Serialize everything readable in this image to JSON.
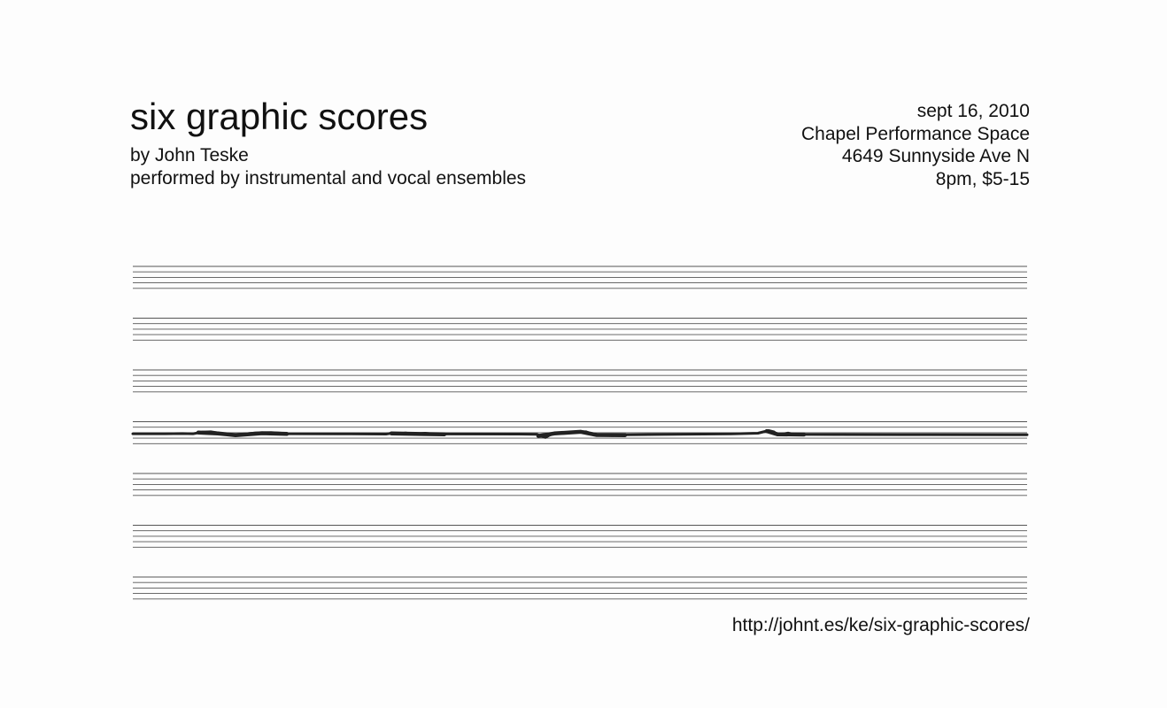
{
  "header": {
    "title": "six graphic scores",
    "byline": "by John Teske",
    "performers": "performed by instrumental and vocal ensembles"
  },
  "event": {
    "date": "sept 16, 2010",
    "venue": "Chapel Performance Space",
    "address": "4649 Sunnyside Ave N",
    "time_price": "8pm, $5-15"
  },
  "score": {
    "staff_count": 7,
    "lines_per_staff": 5,
    "marked_staff_index": 3,
    "line_color": "#555555",
    "mark_color": "#222222"
  },
  "footer": {
    "url": "http://johnt.es/ke/six-graphic-scores/"
  }
}
